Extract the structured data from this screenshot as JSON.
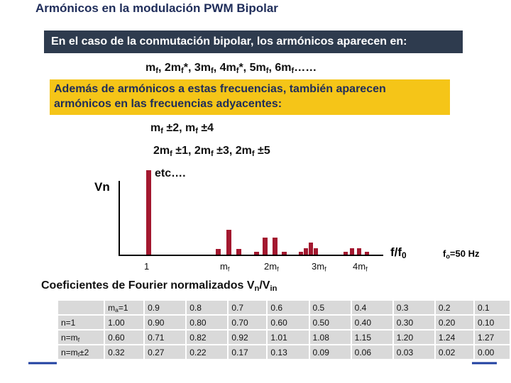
{
  "title": "Armónicos en la modulación PWM Bipolar",
  "banner": "En el caso de la conmutación bipolar, los armónicos aparecen en:",
  "harmonics_line": [
    {
      "text": "m"
    },
    {
      "sub": "f"
    },
    {
      "text": ", 2m"
    },
    {
      "sub": "f"
    },
    {
      "text": "*, 3m"
    },
    {
      "sub": "f"
    },
    {
      "text": ", 4m"
    },
    {
      "sub": "f"
    },
    {
      "text": "*, 5m"
    },
    {
      "sub": "f"
    },
    {
      "text": ", 6m"
    },
    {
      "sub": "f"
    },
    {
      "text": "……"
    }
  ],
  "callout": [
    "Además de armónicos a estas frecuencias, también aparecen",
    "armónicos en las frecuencias adyacentes:"
  ],
  "sidebands": [
    [
      {
        "text": "m"
      },
      {
        "sub": "f"
      },
      {
        "text": " ±2, m"
      },
      {
        "sub": "f"
      },
      {
        "text": " ±4"
      }
    ],
    [
      {
        "text": "2m"
      },
      {
        "sub": "f"
      },
      {
        "text": " ±1, 2m"
      },
      {
        "sub": "f"
      },
      {
        "text": " ±3, 2m"
      },
      {
        "sub": "f"
      },
      {
        "text": " ±5"
      }
    ]
  ],
  "etc": "etc….",
  "spectrum": {
    "y_label": "Vn",
    "x_labels": [
      [
        {
          "text": "1"
        }
      ],
      [
        {
          "text": "m"
        },
        {
          "sub": "f"
        }
      ],
      [
        {
          "text": "2m"
        },
        {
          "sub": "f"
        }
      ],
      [
        {
          "text": "3m"
        },
        {
          "sub": "f"
        }
      ],
      [
        {
          "text": "4m"
        },
        {
          "sub": "f"
        }
      ]
    ],
    "x_axis_label": [
      {
        "text": "f/f"
      },
      {
        "sub": "0"
      }
    ],
    "note": [
      {
        "text": "f"
      },
      {
        "sub": "o"
      },
      {
        "text": "=50 Hz"
      }
    ]
  },
  "table": {
    "title": [
      {
        "text": "Coeficientes de Fourier normalizados V"
      },
      {
        "sub": "n"
      },
      {
        "text": "/V"
      },
      {
        "sub": "in"
      }
    ],
    "header": [
      [
        {
          "text": "m"
        },
        {
          "sub": "a"
        },
        {
          "text": "=1"
        }
      ],
      "0.9",
      "0.8",
      "0.7",
      "0.6",
      "0.5",
      "0.4",
      "0.3",
      "0.2",
      "0.1"
    ],
    "rows": [
      [
        [
          {
            "text": "n=1"
          }
        ],
        "1.00",
        "0.90",
        "0.80",
        "0.70",
        "0.60",
        "0.50",
        "0.40",
        "0.30",
        "0.20",
        "0.10"
      ],
      [
        [
          {
            "text": "n=m"
          },
          {
            "sub": "f"
          }
        ],
        "0.60",
        "0.71",
        "0.82",
        "0.92",
        "1.01",
        "1.08",
        "1.15",
        "1.20",
        "1.24",
        "1.27"
      ],
      [
        [
          {
            "text": "n=m"
          },
          {
            "sub": "f"
          },
          {
            "text": "±2"
          }
        ],
        "0.32",
        "0.27",
        "0.22",
        "0.17",
        "0.13",
        "0.09",
        "0.06",
        "0.03",
        "0.02",
        "0.00"
      ]
    ]
  }
}
